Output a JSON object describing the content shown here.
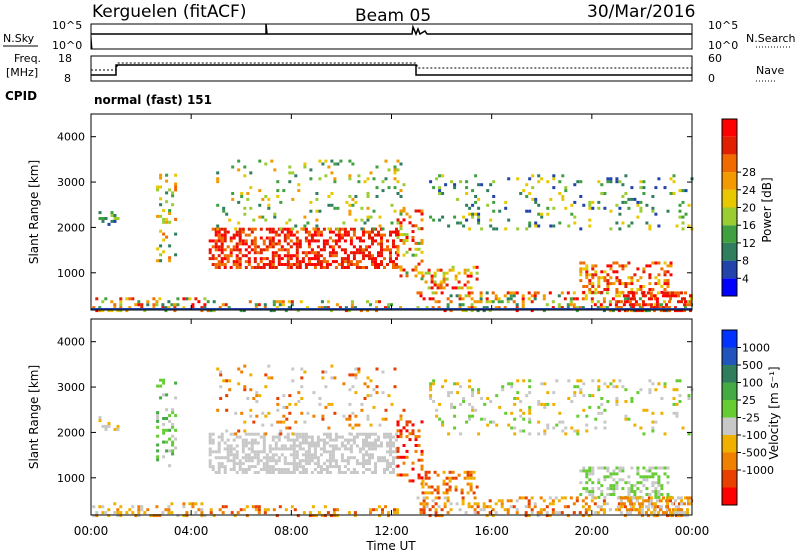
{
  "header": {
    "station": "Kerguelen (fitACF)",
    "beam": "Beam 05",
    "date": "30/Mar/2016"
  },
  "mini_panels": {
    "nsky_label": "N.Sky",
    "nsearch_label": "N.Search",
    "nsky_ticks": [
      "10^5",
      "10^0"
    ],
    "nsearch_ticks": [
      "10^5",
      "10^0"
    ],
    "freq_label": "Freq.",
    "freq_unit": "[MHz]",
    "freq_ticks": [
      "18",
      "8"
    ],
    "nave_label": "Nave",
    "nave_ticks": [
      "60",
      "0"
    ],
    "cpid_label": "CPID",
    "cpid_value": "normal (fast) 151"
  },
  "x_axis": {
    "label": "Time UT",
    "ticks": [
      "00:00",
      "04:00",
      "08:00",
      "12:00",
      "16:00",
      "20:00",
      "00:00"
    ]
  },
  "colors": {
    "power": [
      "#0000ff",
      "#2244aa",
      "#2f7f5f",
      "#3fa040",
      "#9acd32",
      "#e8c800",
      "#f29a00",
      "#f06a00",
      "#e02000",
      "#ff0000"
    ],
    "velocity": [
      "#0033ff",
      "#2255bb",
      "#2e7d5c",
      "#44aa44",
      "#66cc33",
      "#c8c8c8",
      "#f0b000",
      "#f08000",
      "#e84000",
      "#ff0000"
    ]
  },
  "chart_data": [
    {
      "type": "heatmap",
      "title": "Power",
      "ylabel": "Slant Range [km]",
      "xlabel": "",
      "xlim_hours": [
        0,
        24
      ],
      "ylim": [
        180,
        4500
      ],
      "yticks": [
        1000,
        2000,
        3000,
        4000
      ],
      "colorbar": {
        "label": "Power [dB]",
        "ticks": [
          4,
          8,
          12,
          16,
          20,
          24,
          28
        ],
        "range": [
          0,
          30
        ]
      }
    },
    {
      "type": "heatmap",
      "title": "Velocity",
      "ylabel": "Slant Range [km]",
      "xlabel": "Time UT",
      "xlim_hours": [
        0,
        24
      ],
      "ylim": [
        180,
        4500
      ],
      "yticks": [
        1000,
        2000,
        3000,
        4000
      ],
      "colorbar": {
        "label": "Velocity [m s⁻¹]",
        "ticks": [
          1000,
          500,
          100,
          25,
          -25,
          -100,
          -500,
          -1000
        ]
      }
    }
  ]
}
